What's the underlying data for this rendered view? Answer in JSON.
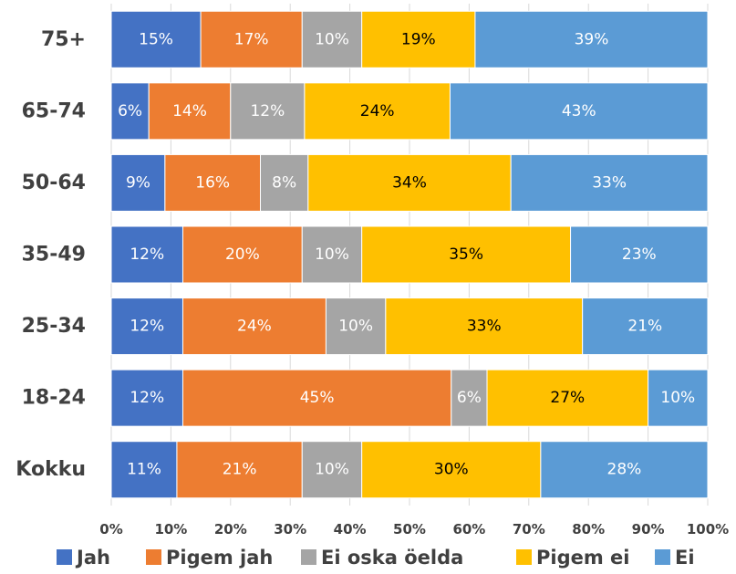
{
  "chart_data": {
    "type": "stacked-bar-horizontal",
    "categories": [
      "75+",
      "65-74",
      "50-64",
      "35-49",
      "25-34",
      "18-24",
      "Kokku"
    ],
    "series": [
      {
        "name": "Jah",
        "color": "#4472c4",
        "label_color": "#ffffff",
        "values": [
          15,
          6.3,
          9,
          12,
          12,
          12,
          11
        ],
        "value_labels": [
          "15%",
          "6%",
          "9%",
          "12%",
          "12%",
          "12%",
          "11%"
        ]
      },
      {
        "name": "Pigem jah",
        "color": "#ed7d31",
        "label_color": "#ffffff",
        "values": [
          17,
          13.7,
          16,
          20,
          24,
          45,
          21
        ],
        "value_labels": [
          "17%",
          "14%",
          "16%",
          "20%",
          "24%",
          "45%",
          "21%"
        ]
      },
      {
        "name": "Ei oska öelda",
        "color": "#a5a5a5",
        "label_color": "#ffffff",
        "values": [
          10,
          12.4,
          8,
          10,
          10,
          6,
          10
        ],
        "value_labels": [
          "10%",
          "12%",
          "8%",
          "10%",
          "10%",
          "6%",
          "10%"
        ]
      },
      {
        "name": "Pigem ei",
        "color": "#ffc000",
        "label_color": "#000000",
        "values": [
          19,
          24.4,
          34,
          35,
          33,
          27,
          30
        ],
        "value_labels": [
          "19%",
          "24%",
          "34%",
          "35%",
          "33%",
          "27%",
          "30%"
        ]
      },
      {
        "name": "Ei",
        "color": "#5b9bd5",
        "label_color": "#ffffff",
        "values": [
          39,
          43.2,
          33,
          23,
          21,
          10,
          28
        ],
        "value_labels": [
          "39%",
          "43%",
          "33%",
          "23%",
          "21%",
          "10%",
          "28%"
        ]
      }
    ],
    "xlim": [
      0,
      100
    ],
    "xticks": [
      {
        "value": 0,
        "label": "0%"
      },
      {
        "value": 10,
        "label": "10%"
      },
      {
        "value": 20,
        "label": "20%"
      },
      {
        "value": 30,
        "label": "30%"
      },
      {
        "value": 40,
        "label": "40%"
      },
      {
        "value": 50,
        "label": "50%"
      },
      {
        "value": 60,
        "label": "60%"
      },
      {
        "value": 70,
        "label": "70%"
      },
      {
        "value": 80,
        "label": "80%"
      },
      {
        "value": 90,
        "label": "90%"
      },
      {
        "value": 100,
        "label": "100%"
      }
    ],
    "grid": true,
    "legend": "bottom"
  }
}
